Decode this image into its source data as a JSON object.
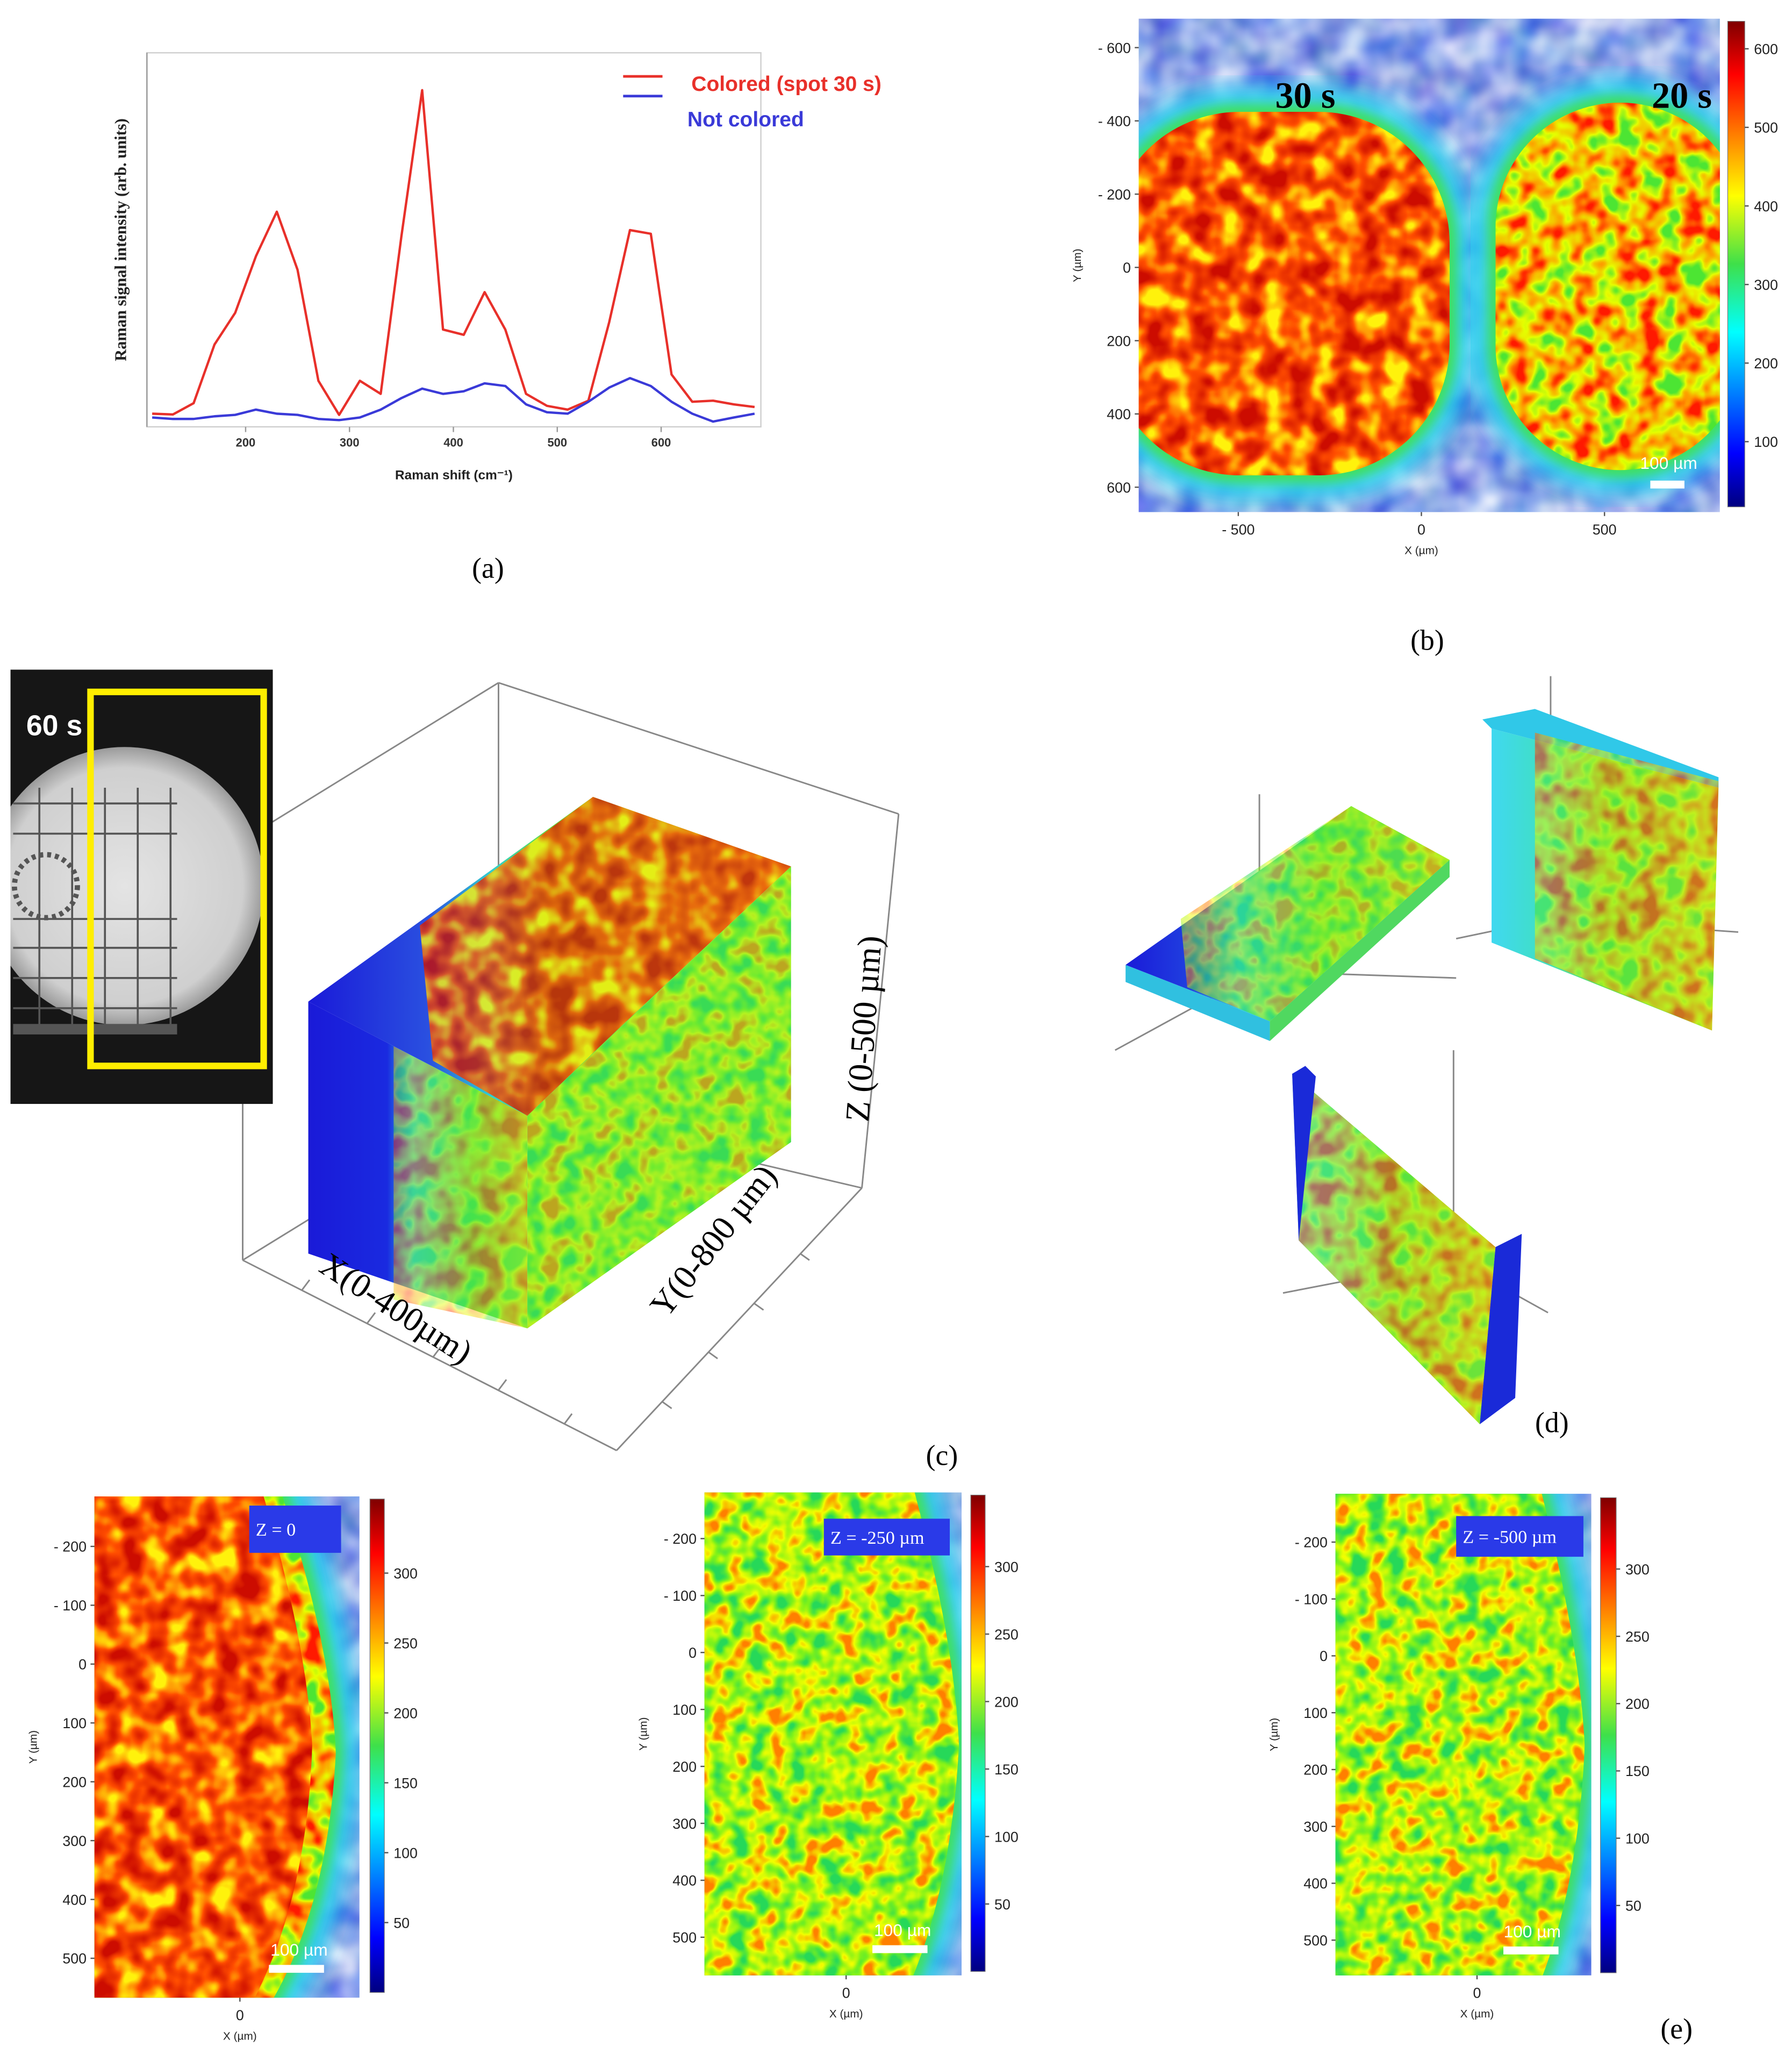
{
  "chart_data": [
    {
      "type": "line",
      "caption": "(a)",
      "xlabel": "Raman shift (cm⁻¹)",
      "ylabel": "Raman signal intensity (arb. units)",
      "x": [
        110,
        130,
        150,
        170,
        190,
        210,
        230,
        250,
        270,
        290,
        310,
        330,
        350,
        370,
        390,
        410,
        430,
        450,
        470,
        490,
        510,
        530,
        550,
        570,
        590,
        610,
        630,
        650,
        670,
        690
      ],
      "xlim": [
        105,
        696
      ],
      "xticks": [
        200,
        300,
        400,
        500,
        600
      ],
      "ylim": [
        0,
        100
      ],
      "series": [
        {
          "name": "Colored (spot 30 s)",
          "color": "#e8302a",
          "values": [
            3.5,
            3.3,
            6.3,
            22,
            30.5,
            45.6,
            57.5,
            42,
            12.3,
            3.2,
            12.3,
            8.8,
            51,
            90,
            26,
            24.6,
            36,
            26,
            8.8,
            5.6,
            4.6,
            7,
            28,
            52.6,
            51.6,
            14,
            6.7,
            7,
            6,
            5.3
          ]
        },
        {
          "name": "Not colored",
          "color": "#3a3ad8",
          "values": [
            2.5,
            2.1,
            2.1,
            2.8,
            3.2,
            4.6,
            3.5,
            3.2,
            2.1,
            1.8,
            2.5,
            4.6,
            7.7,
            10.2,
            8.8,
            9.5,
            11.6,
            10.9,
            6,
            3.9,
            3.5,
            6.7,
            10.5,
            13,
            10.9,
            6.7,
            3.5,
            1.4,
            2.5,
            3.5
          ]
        }
      ]
    },
    {
      "type": "heatmap",
      "caption": "(b)",
      "annotations": [
        "30 s",
        "20 s"
      ],
      "scale_bar": "100 µm",
      "xlabel": "X (µm)",
      "ylabel": "Y (µm)",
      "xlim": [
        -772,
        815
      ],
      "xticks": [
        {
          "value": -500,
          "label": "- 500"
        },
        0,
        500
      ],
      "ylim": [
        -679,
        668
      ],
      "yticks": [
        {
          "value": -600,
          "label": "- 600"
        },
        {
          "value": -400,
          "label": "- 400"
        },
        {
          "value": -200,
          "label": "- 200"
        },
        0,
        200,
        400,
        600
      ],
      "colorbar": {
        "lim": [
          17,
          635
        ],
        "ticks": [
          100,
          200,
          300,
          400,
          500,
          600
        ]
      }
    },
    {
      "type": "heatmap",
      "annotations": [
        "Z = 0"
      ],
      "scale_bar": "100 µm",
      "xlabel": "X (µm)",
      "ylabel": "Y (µm)",
      "xlim": [
        -247,
        203
      ],
      "xticks": [
        0
      ],
      "ylim": [
        -285,
        567
      ],
      "yticks": [
        {
          "value": -200,
          "label": "- 200"
        },
        {
          "value": -100,
          "label": "- 100"
        },
        0,
        100,
        200,
        300,
        400,
        500
      ],
      "colorbar": {
        "lim": [
          0,
          353
        ],
        "ticks": [
          50,
          100,
          150,
          200,
          250,
          300
        ]
      }
    },
    {
      "type": "heatmap",
      "annotations": [
        "Z = -250 µm"
      ],
      "scale_bar": "100 µm",
      "xlabel": "X (µm)",
      "ylabel": "Y (µm)",
      "xlim": [
        -249,
        203
      ],
      "xticks": [
        0
      ],
      "ylim": [
        -281,
        567
      ],
      "yticks": [
        {
          "value": -200,
          "label": "- 200"
        },
        {
          "value": -100,
          "label": "- 100"
        },
        0,
        100,
        200,
        300,
        400,
        500
      ],
      "colorbar": {
        "lim": [
          0,
          353
        ],
        "ticks": [
          50,
          100,
          150,
          200,
          250,
          300
        ]
      }
    },
    {
      "type": "heatmap",
      "annotations": [
        "Z = -500 µm"
      ],
      "scale_bar": "100 µm",
      "xlabel": "X (µm)",
      "ylabel": "Y (µm)",
      "xlim": [
        -249,
        201
      ],
      "xticks": [
        0
      ],
      "ylim": [
        -285,
        562
      ],
      "yticks": [
        {
          "value": -200,
          "label": "- 200"
        },
        {
          "value": -100,
          "label": "- 100"
        },
        0,
        100,
        200,
        300,
        400,
        500
      ],
      "colorbar": {
        "lim": [
          0,
          353
        ],
        "ticks": [
          50,
          100,
          150,
          200,
          250,
          300
        ]
      }
    }
  ],
  "figure": {
    "panel_c": {
      "inset_label": "60 s",
      "x_label": "X(0-400µm)",
      "y_label": "Y(0-800 µm)",
      "z_label": "Z (0-500 µm)",
      "caption": "(c)"
    },
    "panel_d": {
      "caption": "(d)"
    },
    "panel_e": {
      "caption": "(e)"
    }
  }
}
